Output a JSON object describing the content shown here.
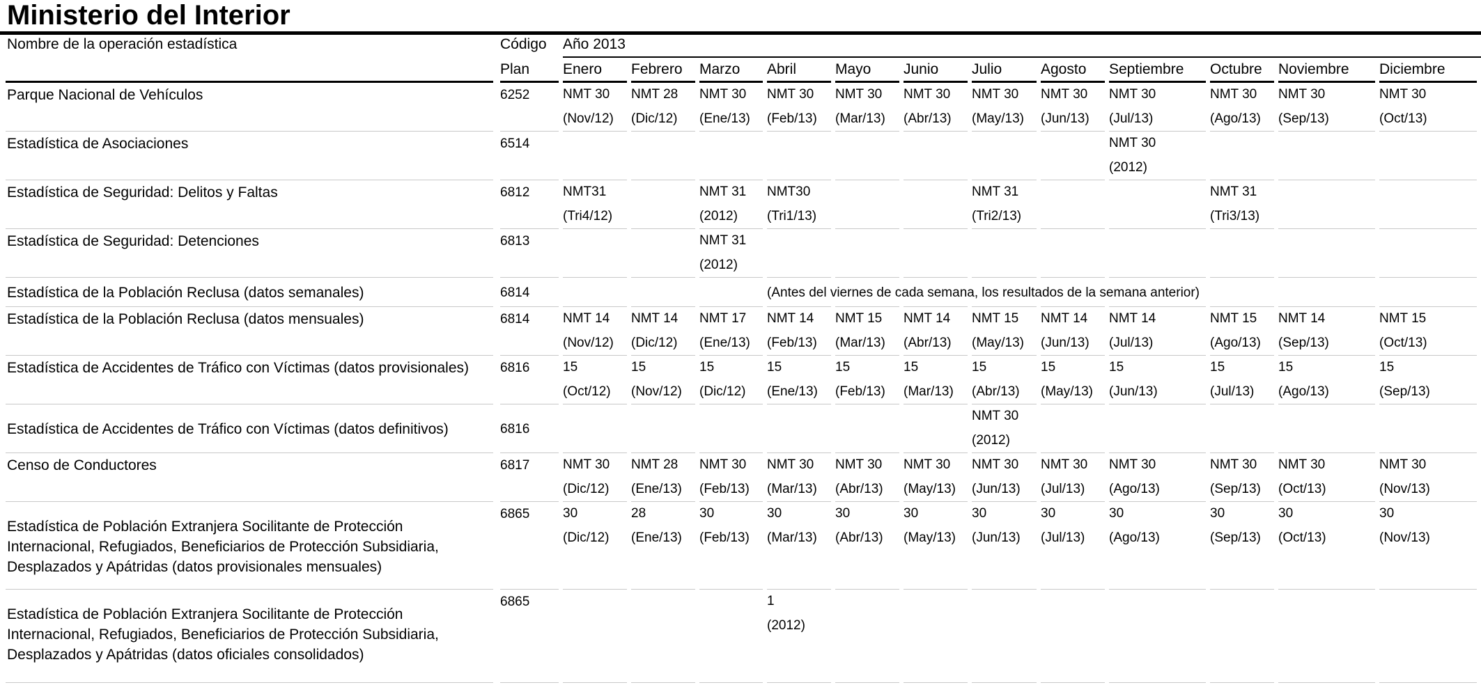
{
  "title": "Ministerio del Interior",
  "header": {
    "name_col": "Nombre de la operación estadística",
    "code_col_line1": "Código",
    "code_col_line2": "Plan",
    "year": "Año 2013",
    "months": [
      "Enero",
      "Febrero",
      "Marzo",
      "Abril",
      "Mayo",
      "Junio",
      "Julio",
      "Agosto",
      "Septiembre",
      "Octubre",
      "Noviembre",
      "Diciembre"
    ]
  },
  "rows": [
    {
      "name": "Parque Nacional de Vehículos",
      "code": "6252",
      "cells": [
        [
          "NMT 30",
          "(Nov/12)"
        ],
        [
          "NMT 28",
          "(Dic/12)"
        ],
        [
          "NMT 30",
          "(Ene/13)"
        ],
        [
          "NMT 30",
          "(Feb/13)"
        ],
        [
          "NMT 30",
          "(Mar/13)"
        ],
        [
          "NMT 30",
          "(Abr/13)"
        ],
        [
          "NMT 30",
          "(May/13)"
        ],
        [
          "NMT 30",
          "(Jun/13)"
        ],
        [
          "NMT 30",
          "(Jul/13)"
        ],
        [
          "NMT 30",
          "(Ago/13)"
        ],
        [
          "NMT 30",
          "(Sep/13)"
        ],
        [
          "NMT 30",
          "(Oct/13)"
        ]
      ]
    },
    {
      "name": "Estadística de Asociaciones",
      "code": "6514",
      "cells": [
        null,
        null,
        null,
        null,
        null,
        null,
        null,
        null,
        [
          "NMT 30",
          "(2012)"
        ],
        null,
        null,
        null
      ]
    },
    {
      "name": "Estadística de Seguridad: Delitos y Faltas",
      "code": "6812",
      "cells": [
        [
          "NMT31",
          "(Tri4/12)"
        ],
        null,
        [
          "NMT 31",
          "(2012)"
        ],
        [
          "NMT30",
          "(Tri1/13)"
        ],
        null,
        null,
        [
          "NMT 31",
          "(Tri2/13)"
        ],
        null,
        null,
        [
          "NMT 31",
          "(Tri3/13)"
        ],
        null,
        null
      ]
    },
    {
      "name": "Estadística de Seguridad: Detenciones",
      "code": "6813",
      "cells": [
        null,
        null,
        [
          "NMT 31",
          "(2012)"
        ],
        null,
        null,
        null,
        null,
        null,
        null,
        null,
        null,
        null
      ]
    },
    {
      "name": "Estadística de la Población Reclusa (datos semanales)",
      "code": "6814",
      "note": "(Antes del viernes de cada semana, los resultados de la semana anterior)"
    },
    {
      "name": "Estadística de la Población Reclusa (datos  mensuales)",
      "code": "6814",
      "cells": [
        [
          "NMT 14",
          "(Nov/12)"
        ],
        [
          "NMT 14",
          "(Dic/12)"
        ],
        [
          "NMT 17",
          "(Ene/13)"
        ],
        [
          "NMT 14",
          "(Feb/13)"
        ],
        [
          "NMT 15",
          "(Mar/13)"
        ],
        [
          "NMT 14",
          "(Abr/13)"
        ],
        [
          "NMT 15",
          "(May/13)"
        ],
        [
          "NMT 14",
          "(Jun/13)"
        ],
        [
          "NMT 14",
          "(Jul/13)"
        ],
        [
          "NMT 15",
          "(Ago/13)"
        ],
        [
          "NMT 14",
          "(Sep/13)"
        ],
        [
          "NMT 15",
          "(Oct/13)"
        ]
      ]
    },
    {
      "name": "Estadística de Accidentes de Tráfico con Víctimas (datos provisionales)",
      "code": "6816",
      "cells": [
        [
          "15",
          "(Oct/12)"
        ],
        [
          "15",
          "(Nov/12)"
        ],
        [
          "15",
          "(Dic/12)"
        ],
        [
          "15",
          "(Ene/13)"
        ],
        [
          "15",
          "(Feb/13)"
        ],
        [
          "15",
          "(Mar/13)"
        ],
        [
          "15",
          "(Abr/13)"
        ],
        [
          "15",
          "(May/13)"
        ],
        [
          "15",
          "(Jun/13)"
        ],
        [
          "15",
          "(Jul/13)"
        ],
        [
          "15",
          "(Ago/13)"
        ],
        [
          "15",
          "(Sep/13)"
        ]
      ]
    },
    {
      "name": "Estadística de Accidentes de Tráfico con Víctimas (datos definitivos)",
      "code": "6816",
      "cells": [
        null,
        null,
        null,
        null,
        null,
        null,
        [
          "NMT 30",
          "(2012)"
        ],
        null,
        null,
        null,
        null,
        null
      ]
    },
    {
      "name": "Censo de Conductores",
      "code": "6817",
      "cells": [
        [
          "NMT 30",
          "(Dic/12)"
        ],
        [
          "NMT 28",
          "(Ene/13)"
        ],
        [
          "NMT 30",
          "(Feb/13)"
        ],
        [
          "NMT 30",
          "(Mar/13)"
        ],
        [
          "NMT 30",
          "(Abr/13)"
        ],
        [
          "NMT 30",
          "(May/13)"
        ],
        [
          "NMT 30",
          "(Jun/13)"
        ],
        [
          "NMT 30",
          "(Jul/13)"
        ],
        [
          "NMT 30",
          "(Ago/13)"
        ],
        [
          "NMT 30",
          "(Sep/13)"
        ],
        [
          "NMT 30",
          "(Oct/13)"
        ],
        [
          "NMT 30",
          "(Nov/13)"
        ]
      ]
    },
    {
      "name": "Estadística de Población Extranjera Socilitante de Protección Internacional, Refugiados, Beneficiarios de Protección Subsidiaria, Desplazados y Apátridas (datos provisionales mensuales)",
      "code": "6865",
      "cells": [
        [
          "30",
          "(Dic/12)"
        ],
        [
          "28",
          "(Ene/13)"
        ],
        [
          "30",
          "(Feb/13)"
        ],
        [
          "30",
          "(Mar/13)"
        ],
        [
          "30",
          "(Abr/13)"
        ],
        [
          "30",
          "(May/13)"
        ],
        [
          "30",
          "(Jun/13)"
        ],
        [
          "30",
          "(Jul/13)"
        ],
        [
          "30",
          "(Ago/13)"
        ],
        [
          "30",
          "(Sep/13)"
        ],
        [
          "30",
          "(Oct/13)"
        ],
        [
          "30",
          "(Nov/13)"
        ]
      ]
    },
    {
      "name": "Estadística de Población Extranjera Socilitante de Protección Internacional, Refugiados, Beneficiarios de Protección Subsidiaria, Desplazados y Apátridas (datos oficiales consolidados)",
      "code": "6865",
      "cells": [
        null,
        null,
        null,
        [
          "1",
          "(2012)"
        ],
        null,
        null,
        null,
        null,
        null,
        null,
        null,
        null
      ]
    }
  ]
}
